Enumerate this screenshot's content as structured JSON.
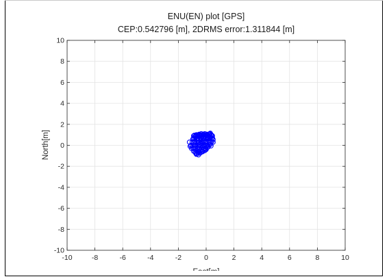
{
  "chart_data": {
    "type": "scatter",
    "title": "ENU(EN) plot [GPS]",
    "subtitle": "CEP:0.542796 [m], 2DRMS error:1.311844 [m]",
    "xlabel": "East[m]",
    "ylabel": "North[m]",
    "xlim": [
      -10,
      10
    ],
    "ylim": [
      -10,
      10
    ],
    "xticks": [
      "-10",
      "-8",
      "-6",
      "-4",
      "-2",
      "0",
      "2",
      "4",
      "6",
      "8",
      "10"
    ],
    "yticks": [
      "-10",
      "-8",
      "-6",
      "-4",
      "-2",
      "0",
      "2",
      "4",
      "6",
      "8",
      "10"
    ],
    "grid": true,
    "legend": "none",
    "marker": "circle-open",
    "series": [
      {
        "color": "#0000ff",
        "x": [
          -0.9,
          -0.85,
          -0.8,
          -0.75,
          -0.7,
          -0.65,
          -0.6,
          -0.55,
          -0.5,
          -0.45,
          -0.4,
          -0.35,
          -0.3,
          -0.25,
          -0.2,
          -0.15,
          -0.1,
          -0.05,
          0.0,
          0.05,
          0.1,
          0.15,
          0.2,
          0.25,
          0.3,
          0.35,
          0.4,
          0.45,
          -0.95,
          -0.9,
          -0.8,
          -0.7,
          -0.6,
          -0.5,
          -0.4,
          -0.3,
          -0.2,
          -0.1,
          0.0,
          0.1,
          0.2,
          0.3,
          0.4,
          0.5,
          -1.0,
          -0.9,
          -0.8,
          -0.7,
          -0.6,
          -0.5,
          -0.4,
          -0.3,
          -0.2,
          -0.1,
          0.0,
          0.1,
          0.2,
          0.3,
          0.4,
          -1.1,
          -1.0,
          -0.9,
          -0.8,
          -0.7,
          -0.6,
          -0.5,
          -0.4,
          -0.3,
          -0.2,
          -0.1,
          0.0,
          0.1,
          0.2,
          0.3,
          -1.05,
          -0.95,
          -0.85,
          -0.75,
          -0.65,
          -0.55,
          -0.45,
          -0.35,
          -0.25,
          -0.15,
          -0.05,
          0.05,
          0.15,
          -0.9,
          -0.8,
          -0.7,
          -0.6,
          -0.5,
          -0.4,
          -0.3,
          -0.2,
          -0.1,
          0.0,
          -0.75,
          -0.65,
          -0.55,
          -0.45,
          -0.35,
          -0.25,
          -0.3,
          -0.1,
          0.1,
          0.3,
          0.45,
          0.2,
          0.0,
          -0.2,
          -0.4,
          -0.6,
          -0.8,
          -1.15,
          -1.2,
          0.5,
          0.35,
          -0.55,
          -0.7,
          -0.5,
          -0.3,
          -0.05
        ],
        "y": [
          0.9,
          0.95,
          0.85,
          0.9,
          1.0,
          0.95,
          0.9,
          1.0,
          1.05,
          0.95,
          1.0,
          1.1,
          1.0,
          0.95,
          1.05,
          1.0,
          1.1,
          0.95,
          1.0,
          1.05,
          1.0,
          0.9,
          1.05,
          1.1,
          1.15,
          1.0,
          0.95,
          0.9,
          0.6,
          0.65,
          0.6,
          0.55,
          0.65,
          0.6,
          0.7,
          0.65,
          0.6,
          0.7,
          0.65,
          0.6,
          0.7,
          0.65,
          0.6,
          0.55,
          0.3,
          0.25,
          0.35,
          0.3,
          0.2,
          0.3,
          0.25,
          0.35,
          0.3,
          0.25,
          0.3,
          0.35,
          0.3,
          0.25,
          0.35,
          0.0,
          -0.05,
          0.05,
          0.0,
          -0.1,
          0.0,
          0.05,
          -0.05,
          0.0,
          0.05,
          0.0,
          -0.05,
          0.0,
          0.05,
          0.1,
          -0.3,
          -0.25,
          -0.35,
          -0.3,
          -0.25,
          -0.35,
          -0.3,
          -0.25,
          -0.2,
          -0.3,
          -0.25,
          -0.2,
          -0.15,
          -0.55,
          -0.6,
          -0.5,
          -0.55,
          -0.6,
          -0.5,
          -0.55,
          -0.45,
          -0.5,
          -0.4,
          -0.75,
          -0.8,
          -0.7,
          -0.75,
          -0.65,
          -0.6,
          0.8,
          0.85,
          0.75,
          0.8,
          0.7,
          0.45,
          0.4,
          0.45,
          0.5,
          0.45,
          0.4,
          -0.1,
          0.3,
          0.3,
          -0.05,
          -0.9,
          -0.85,
          0.9,
          0.2,
          -0.35
        ]
      }
    ]
  }
}
